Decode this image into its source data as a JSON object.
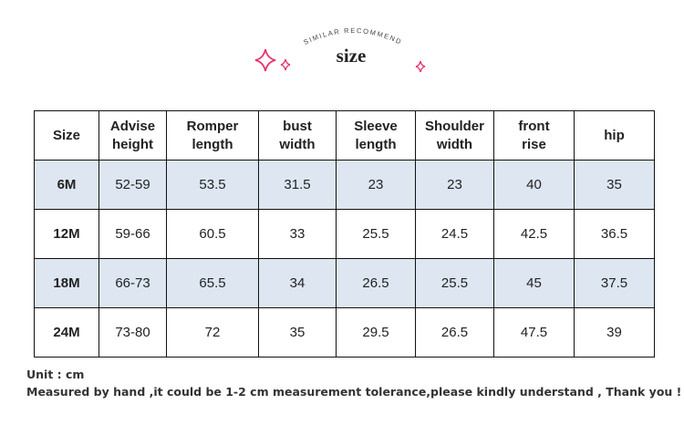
{
  "header": {
    "subtitle": "SIMILAR RECOMMEND",
    "title": "size"
  },
  "table": {
    "columns": [
      "Size",
      "Advise\nheight",
      "Romper\nlength",
      "bust\nwidth",
      "Sleeve\nlength",
      "Shoulder\nwidth",
      "front\nrise",
      "hip"
    ],
    "rows": [
      [
        "6M",
        "52-59",
        53.5,
        31.5,
        23,
        23,
        40,
        35
      ],
      [
        "12M",
        "59-66",
        60.5,
        33,
        25.5,
        24.5,
        42.5,
        36.5
      ],
      [
        "18M",
        "66-73",
        65.5,
        34,
        26.5,
        25.5,
        45,
        37.5
      ],
      [
        "24M",
        "73-80",
        72,
        35,
        29.5,
        26.5,
        47.5,
        39
      ]
    ]
  },
  "notes": [
    "Unit : cm",
    "Measured by hand ,it could be 1-2 cm measurement tolerance,please kindly understand , Thank you !"
  ]
}
